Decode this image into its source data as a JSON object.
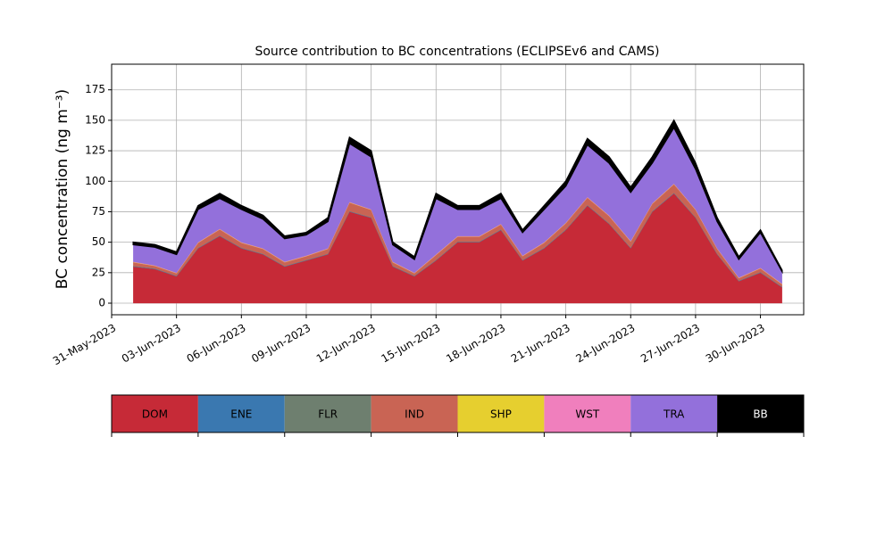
{
  "chart_data": {
    "type": "stacked_area",
    "title": "Source contribution to BC concentrations (ECLIPSEv6 and CAMS)",
    "y_label": "BC concentration (ng m⁻³)",
    "x": [
      "2023-06-01",
      "2023-06-02",
      "2023-06-03",
      "2023-06-04",
      "2023-06-05",
      "2023-06-06",
      "2023-06-07",
      "2023-06-08",
      "2023-06-09",
      "2023-06-10",
      "2023-06-11",
      "2023-06-12",
      "2023-06-13",
      "2023-06-14",
      "2023-06-15",
      "2023-06-16",
      "2023-06-17",
      "2023-06-18",
      "2023-06-19",
      "2023-06-20",
      "2023-06-21",
      "2023-06-22",
      "2023-06-23",
      "2023-06-24",
      "2023-06-25",
      "2023-06-26",
      "2023-06-27",
      "2023-06-28",
      "2023-06-29",
      "2023-06-30",
      "2023-07-01"
    ],
    "series": [
      {
        "name": "DOM",
        "color": "#c62a37",
        "values": [
          30,
          28,
          22,
          45,
          55,
          45,
          40,
          30,
          35,
          40,
          75,
          70,
          30,
          22,
          35,
          50,
          50,
          60,
          35,
          45,
          60,
          80,
          65,
          45,
          75,
          90,
          70,
          40,
          18,
          25,
          13
        ]
      },
      {
        "name": "ENE",
        "color": "#3a78b0",
        "values": [
          0.3,
          0.3,
          0.3,
          0.3,
          0.3,
          0.3,
          0.3,
          0.3,
          0.3,
          0.3,
          0.3,
          0.3,
          0.3,
          0.3,
          0.3,
          0.3,
          0.3,
          0.3,
          0.3,
          0.3,
          0.3,
          0.3,
          0.3,
          0.3,
          0.3,
          0.3,
          0.3,
          0.3,
          0.3,
          0.3,
          0.3
        ]
      },
      {
        "name": "FLR",
        "color": "#6e7f6f",
        "values": [
          0.2,
          0.2,
          0.2,
          0.2,
          0.2,
          0.2,
          0.2,
          0.2,
          0.2,
          0.2,
          0.2,
          0.2,
          0.2,
          0.2,
          0.2,
          0.2,
          0.2,
          0.2,
          0.2,
          0.2,
          0.2,
          0.2,
          0.2,
          0.2,
          0.2,
          0.2,
          0.2,
          0.2,
          0.2,
          0.2,
          0.2
        ]
      },
      {
        "name": "IND",
        "color": "#c96454",
        "values": [
          3,
          2,
          2,
          4,
          5,
          4,
          4,
          3,
          3,
          4,
          7,
          6,
          3,
          2,
          4,
          4,
          4,
          4,
          3,
          4,
          5,
          6,
          6,
          5,
          6,
          7,
          6,
          4,
          2,
          3,
          2
        ]
      },
      {
        "name": "SHP",
        "color": "#e6cf2f",
        "values": [
          0.2,
          0.2,
          0.2,
          0.2,
          0.2,
          0.2,
          0.2,
          0.2,
          0.2,
          0.2,
          0.2,
          0.2,
          0.2,
          0.2,
          0.2,
          0.2,
          0.2,
          0.2,
          0.2,
          0.2,
          0.2,
          0.2,
          0.2,
          0.2,
          0.2,
          0.2,
          0.2,
          0.2,
          0.2,
          0.2,
          0.2
        ]
      },
      {
        "name": "WST",
        "color": "#f07fbd",
        "values": [
          0.3,
          0.3,
          0.3,
          0.3,
          0.3,
          0.3,
          0.3,
          0.3,
          0.3,
          0.3,
          0.3,
          0.3,
          0.3,
          0.3,
          0.3,
          0.3,
          0.3,
          0.3,
          0.3,
          0.3,
          0.3,
          0.3,
          0.3,
          0.3,
          0.3,
          0.3,
          0.3,
          0.3,
          0.3,
          0.3,
          0.3
        ]
      },
      {
        "name": "TRA",
        "color": "#9370db",
        "values": [
          14,
          15,
          15,
          27,
          25,
          27,
          24,
          19,
          17,
          22,
          48,
          43,
          14,
          11,
          46,
          22,
          22,
          21,
          19,
          27,
          30,
          43,
          43,
          40,
          33,
          46,
          33,
          22,
          15,
          29,
          10
        ]
      },
      {
        "name": "BB",
        "color": "#000000",
        "values": [
          2,
          2,
          2,
          3,
          4,
          3,
          3,
          2,
          2,
          3,
          5,
          5,
          2,
          2,
          4,
          3,
          3,
          4,
          2,
          3,
          4,
          5,
          5,
          4,
          5,
          6,
          5,
          3,
          2,
          2,
          1
        ]
      }
    ],
    "xlim": [
      "2023-05-31",
      "2023-07-02"
    ],
    "xticks": [
      {
        "value": "2023-05-31",
        "label": "31-May-2023"
      },
      {
        "value": "2023-06-03",
        "label": "03-Jun-2023"
      },
      {
        "value": "2023-06-06",
        "label": "06-Jun-2023"
      },
      {
        "value": "2023-06-09",
        "label": "09-Jun-2023"
      },
      {
        "value": "2023-06-12",
        "label": "12-Jun-2023"
      },
      {
        "value": "2023-06-15",
        "label": "15-Jun-2023"
      },
      {
        "value": "2023-06-18",
        "label": "18-Jun-2023"
      },
      {
        "value": "2023-06-21",
        "label": "21-Jun-2023"
      },
      {
        "value": "2023-06-24",
        "label": "24-Jun-2023"
      },
      {
        "value": "2023-06-27",
        "label": "27-Jun-2023"
      },
      {
        "value": "2023-06-30",
        "label": "30-Jun-2023"
      }
    ],
    "ylim": [
      -9.5,
      196
    ],
    "yticks": [
      0,
      25,
      50,
      75,
      100,
      125,
      150,
      175
    ],
    "grid": true,
    "legend": "bottom"
  }
}
